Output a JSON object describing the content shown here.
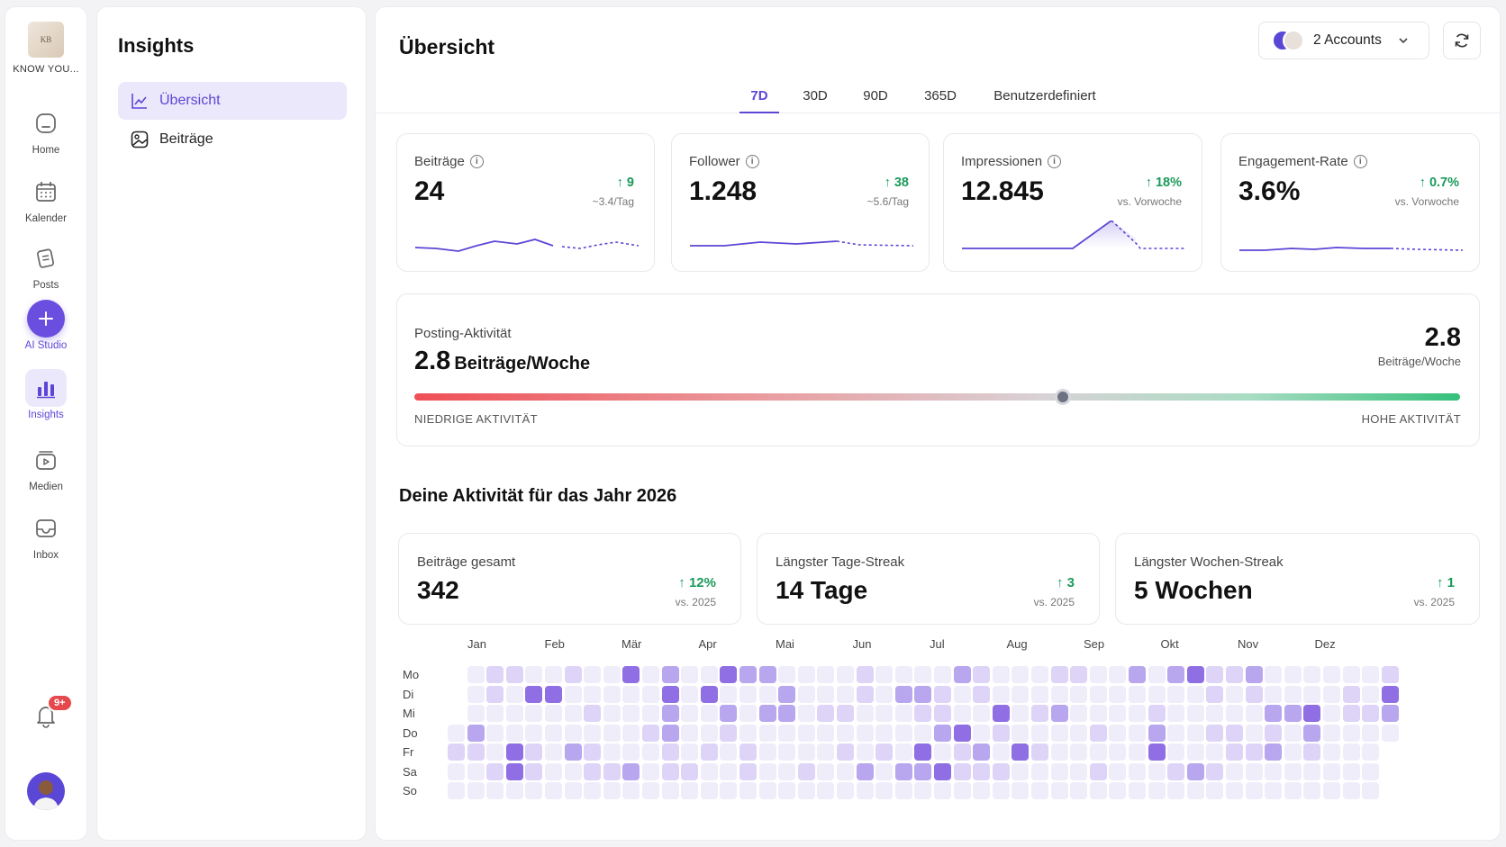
{
  "brand": {
    "label": "KNOW YOU...",
    "logo_text": "KB"
  },
  "rail": [
    {
      "label": "Home",
      "icon": "home-icon"
    },
    {
      "label": "Kalender",
      "icon": "calendar-icon"
    },
    {
      "label": "Posts",
      "icon": "posts-icon"
    },
    {
      "label": "AI Studio",
      "icon": "plus-icon"
    },
    {
      "label": "Insights",
      "icon": "bar-chart-icon"
    },
    {
      "label": "Medien",
      "icon": "media-icon"
    },
    {
      "label": "Inbox",
      "icon": "inbox-icon"
    }
  ],
  "notifications": {
    "badge": "9+"
  },
  "subnav": {
    "title": "Insights",
    "items": [
      {
        "label": "Übersicht",
        "active": true
      },
      {
        "label": "Beiträge",
        "active": false
      }
    ]
  },
  "header": {
    "title": "Übersicht",
    "accounts_label": "2 Accounts"
  },
  "tabs": [
    "7D",
    "30D",
    "90D",
    "365D",
    "Benutzerdefiniert"
  ],
  "active_tab": "7D",
  "kpis": [
    {
      "label": "Beiträge",
      "value": "24",
      "delta": "9",
      "sub": "~3.4/Tag"
    },
    {
      "label": "Follower",
      "value": "1.248",
      "delta": "38",
      "sub": "~5.6/Tag"
    },
    {
      "label": "Impressionen",
      "value": "12.845",
      "delta": "18%",
      "sub": "vs. Vorwoche"
    },
    {
      "label": "Engagement-Rate",
      "value": "3.6%",
      "delta": "0.7%",
      "sub": "vs. Vorwoche"
    }
  ],
  "posting_activity": {
    "label": "Posting-Aktivität",
    "value": "2.8",
    "unit": "Beiträge/Woche",
    "right_value": "2.8",
    "right_unit": "Beiträge/Woche",
    "low_label": "NIEDRIGE AKTIVITÄT",
    "high_label": "HOHE AKTIVITÄT",
    "level": 0.62
  },
  "year": {
    "title": "Deine Aktivität für das Jahr 2026",
    "stats": [
      {
        "label": "Beiträge gesamt",
        "value": "342",
        "delta": "12%",
        "sub": "vs. 2025"
      },
      {
        "label": "Längster Tage-Streak",
        "value": "14 Tage",
        "delta": "3",
        "sub": "vs. 2025"
      },
      {
        "label": "Längster Wochen-Streak",
        "value": "5 Wochen",
        "delta": "1",
        "sub": "vs. 2025"
      }
    ],
    "months": [
      "Jan",
      "Feb",
      "Mär",
      "Apr",
      "Mai",
      "Jun",
      "Jul",
      "Aug",
      "Sep",
      "Okt",
      "Nov",
      "Dez"
    ],
    "days": [
      "Mo",
      "Di",
      "Mi",
      "Do",
      "Fr",
      "Sa",
      "So"
    ]
  },
  "colors": {
    "accent": "#5b46d6",
    "positive": "#1a9a5a",
    "heat_empty": "#f0edfb",
    "heat_low": "#ddd4f7",
    "heat_mid": "#b8a6ef",
    "heat_high": "#8f6fe3"
  }
}
